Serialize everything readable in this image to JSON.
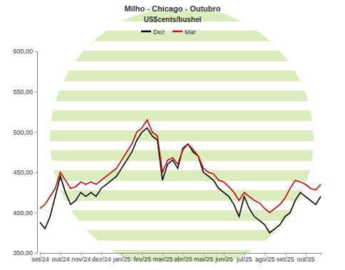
{
  "chart_data": {
    "type": "line",
    "title": "Milho - Chicago - Outubro",
    "subtitle": "US$cents/bushel",
    "categories": [
      "set/24",
      null,
      null,
      null,
      "out/24",
      null,
      null,
      null,
      "nov/24",
      null,
      null,
      null,
      "dez/24",
      null,
      null,
      null,
      "jan/25",
      null,
      null,
      null,
      "fev/25",
      null,
      null,
      null,
      "mar/25",
      null,
      null,
      null,
      "abr/25",
      null,
      null,
      null,
      "mai/25",
      null,
      null,
      null,
      "jun/25",
      null,
      null,
      null,
      "jul/25",
      null,
      null,
      null,
      "ago/25",
      null,
      null,
      null,
      "set/25",
      null,
      null,
      null,
      "out/25",
      null,
      null,
      null
    ],
    "series": [
      {
        "name": "Dez",
        "color": "#000000",
        "values": [
          388,
          380,
          395,
          420,
          445,
          425,
          410,
          415,
          425,
          420,
          425,
          420,
          430,
          435,
          440,
          445,
          455,
          465,
          475,
          490,
          500,
          505,
          495,
          490,
          440,
          460,
          465,
          455,
          480,
          485,
          475,
          470,
          450,
          445,
          440,
          430,
          425,
          420,
          410,
          395,
          420,
          405,
          395,
          390,
          385,
          375,
          380,
          385,
          395,
          400,
          415,
          425,
          420,
          415,
          410,
          420
        ]
      },
      {
        "name": "Mar",
        "color": "#cc0000",
        "values": [
          405,
          410,
          420,
          430,
          450,
          440,
          430,
          432,
          438,
          435,
          438,
          435,
          440,
          445,
          450,
          455,
          465,
          475,
          485,
          500,
          505,
          515,
          500,
          495,
          450,
          465,
          468,
          460,
          478,
          485,
          478,
          470,
          455,
          450,
          448,
          440,
          438,
          432,
          425,
          415,
          425,
          420,
          415,
          412,
          405,
          400,
          405,
          410,
          418,
          430,
          440,
          438,
          435,
          430,
          428,
          435
        ]
      }
    ],
    "ylim": [
      350,
      600
    ],
    "yticks": [
      {
        "value": 350,
        "label": "350,00"
      },
      {
        "value": 400,
        "label": "400,00"
      },
      {
        "value": 450,
        "label": "450,00"
      },
      {
        "value": 500,
        "label": "500,00"
      },
      {
        "value": 550,
        "label": "550,00"
      },
      {
        "value": 600,
        "label": "600,00"
      }
    ],
    "grid": false,
    "legend": "top"
  }
}
